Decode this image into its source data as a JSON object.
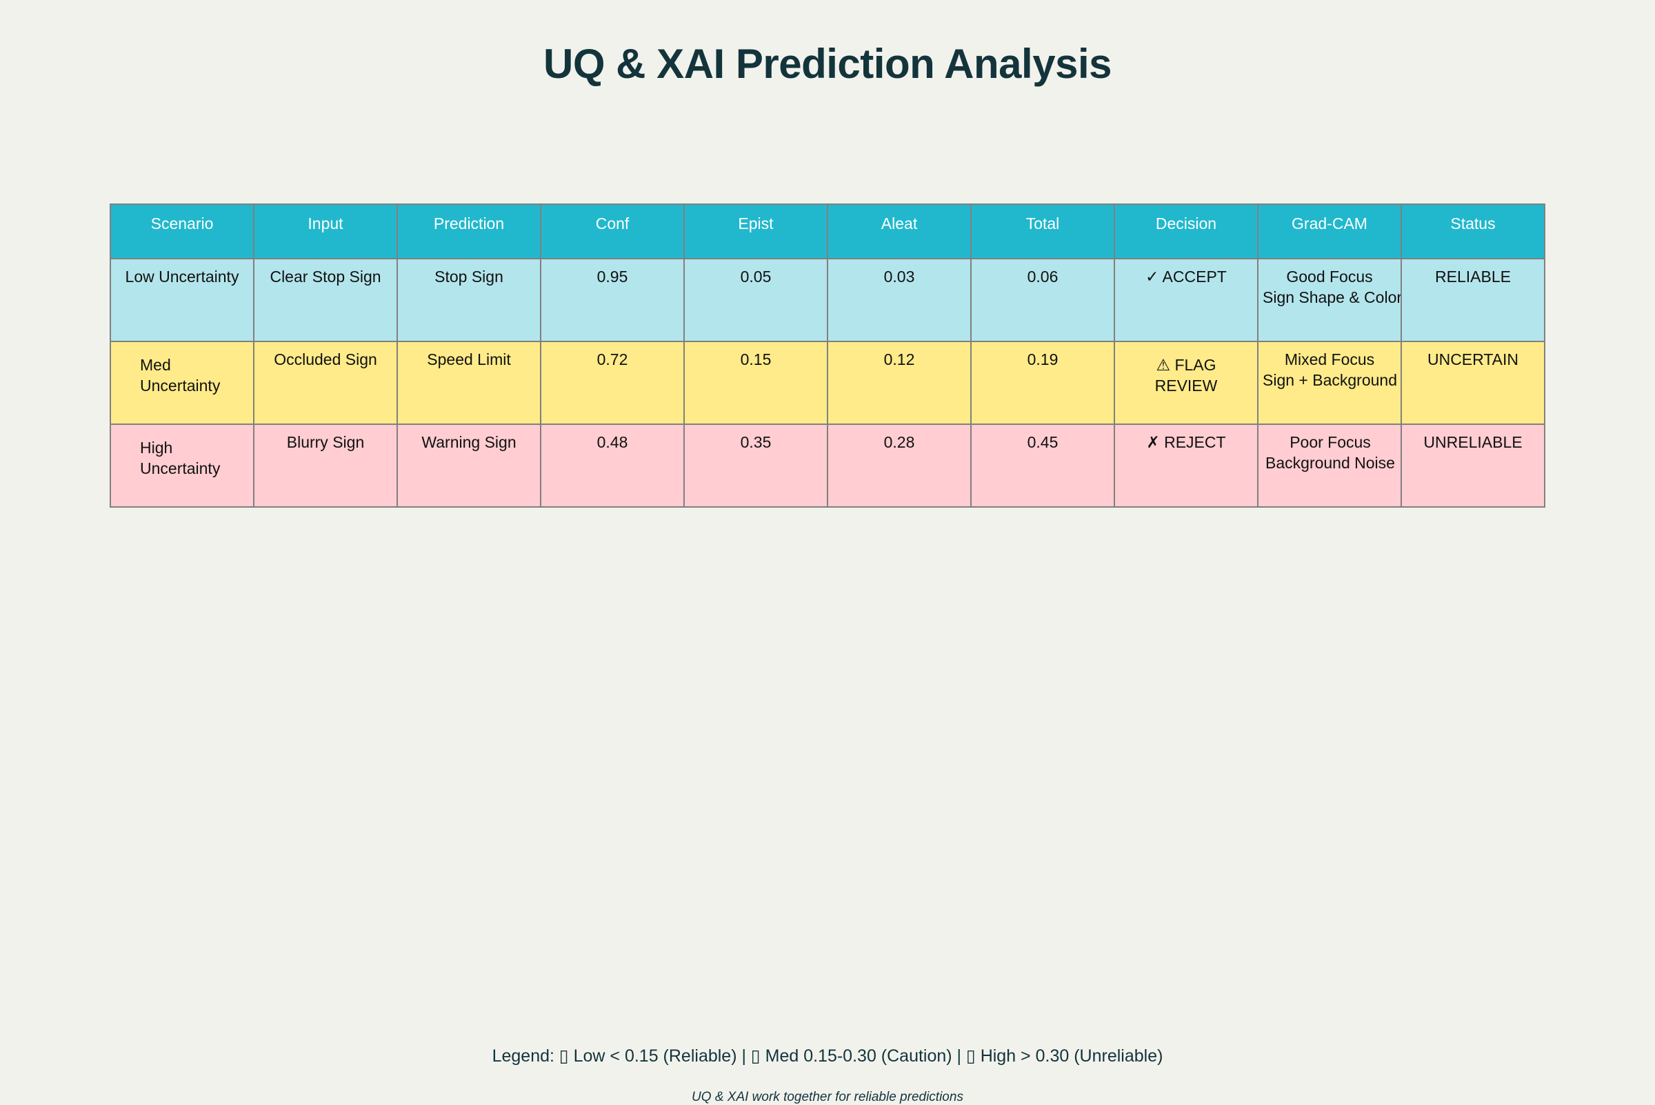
{
  "title": "UQ & XAI Prediction Analysis",
  "colors": {
    "header_bg": "#21b8cd",
    "low_row_bg": "#b3e5ec",
    "med_row_bg": "#ffeb8a",
    "high_row_bg": "#ffcdd2",
    "background": "#f2f2ed",
    "title_color": "#13343b"
  },
  "chart_data": {
    "type": "table",
    "title": "UQ & XAI Prediction Analysis",
    "columns": [
      "Scenario",
      "Input",
      "Prediction",
      "Conf",
      "Epist",
      "Aleat",
      "Total",
      "Decision",
      "Grad-CAM",
      "Status"
    ],
    "rows": [
      {
        "scenario": "Low Uncertainty",
        "input": "Clear Stop Sign",
        "prediction": "Stop Sign",
        "conf": "0.95",
        "epist": "0.05",
        "aleat": "0.03",
        "total": "0.06",
        "decision": "✓ ACCEPT",
        "gradcam_line1": "Good Focus",
        "gradcam_line2": "Sign Shape & Color",
        "status": "RELIABLE"
      },
      {
        "scenario": "Med Uncertainty",
        "input": "Occluded Sign",
        "prediction": "Speed Limit",
        "conf": "0.72",
        "epist": "0.15",
        "aleat": "0.12",
        "total": "0.19",
        "decision": "⚠ FLAG REVIEW",
        "gradcam_line1": "Mixed Focus",
        "gradcam_line2": "Sign + Background",
        "status": "UNCERTAIN"
      },
      {
        "scenario": "High Uncertainty",
        "input": "Blurry Sign",
        "prediction": "Warning Sign",
        "conf": "0.48",
        "epist": "0.35",
        "aleat": "0.28",
        "total": "0.45",
        "decision": "✗ REJECT",
        "gradcam_line1": "Poor Focus",
        "gradcam_line2": "Background Noise",
        "status": "UNRELIABLE"
      }
    ]
  },
  "legend": "Legend: ▯ Low < 0.15 (Reliable) | ▯ Med 0.15-0.30 (Caution) | ▯ High > 0.30 (Unreliable)",
  "footnote": "UQ & XAI work together for reliable predictions"
}
